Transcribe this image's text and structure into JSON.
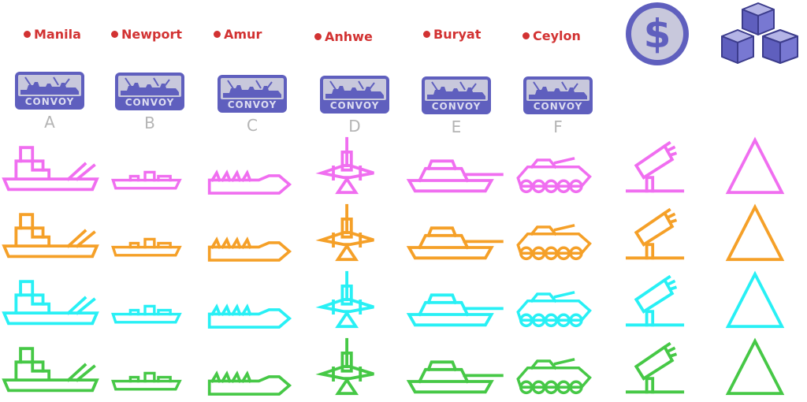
{
  "cities": [
    {
      "name": "Manila"
    },
    {
      "name": "Newport"
    },
    {
      "name": "Amur"
    },
    {
      "name": "Anhwe"
    },
    {
      "name": "Buryat"
    },
    {
      "name": "Ceylon"
    }
  ],
  "convoys": [
    {
      "label": "CONVOY",
      "letter": "A"
    },
    {
      "label": "CONVOY",
      "letter": "B"
    },
    {
      "label": "CONVOY",
      "letter": "C"
    },
    {
      "label": "CONVOY",
      "letter": "D"
    },
    {
      "label": "CONVOY",
      "letter": "E"
    },
    {
      "label": "CONVOY",
      "letter": "F"
    }
  ],
  "resources": [
    {
      "icon": "money-icon",
      "symbol": "$"
    },
    {
      "icon": "supply-crates-icon"
    }
  ],
  "player_colors": [
    "#f06ef0",
    "#f5a028",
    "#28f0f5",
    "#46c846"
  ],
  "unit_types": [
    "battleship",
    "destroyer",
    "submarine",
    "fighter-plane",
    "tank",
    "apc",
    "artillery",
    "infantry-triangle"
  ],
  "colors": {
    "city_label": "#d23232",
    "convoy": "#5f5fbe",
    "letter": "#b4b4b4",
    "coin": "#5f5fbe",
    "coin_face": "#c8c8dc"
  }
}
